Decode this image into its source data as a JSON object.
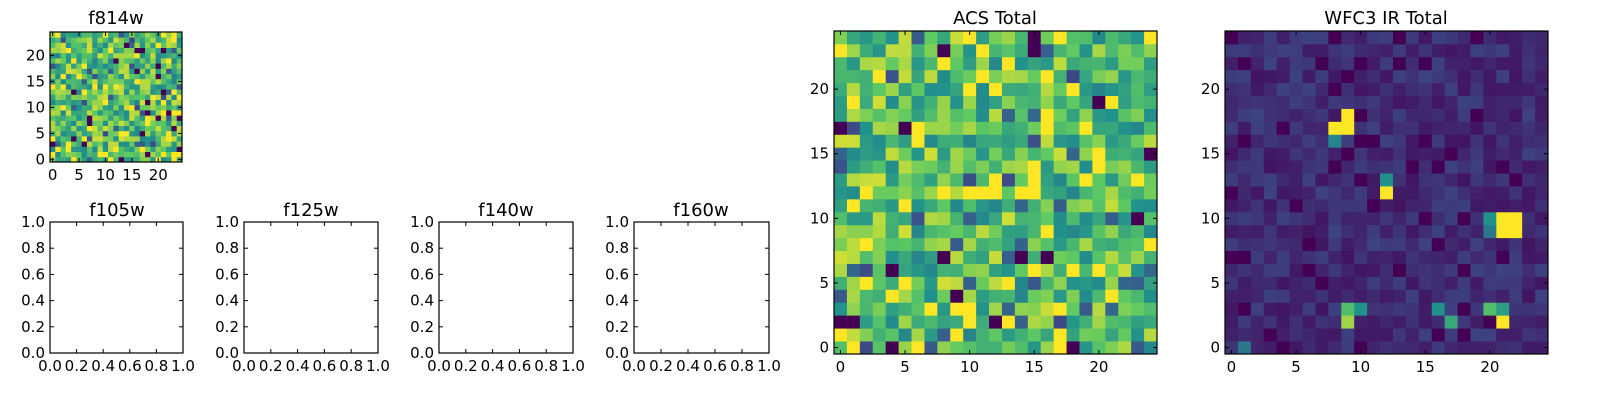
{
  "figure": {
    "title": ""
  },
  "colormap": [
    "#440154",
    "#3b528b",
    "#21918c",
    "#5ec962",
    "#fde725"
  ],
  "chart_data": [
    {
      "id": "f814w",
      "type": "heatmap",
      "title": "f814w",
      "grid": [
        25,
        25
      ],
      "xlim": [
        0,
        24
      ],
      "ylim": [
        0,
        24
      ],
      "xticks": [
        0,
        5,
        10,
        15,
        20
      ],
      "yticks": [
        0,
        5,
        10,
        15,
        20
      ],
      "seed": 17,
      "distribution": "uniform-high",
      "peaks": []
    },
    {
      "id": "f105w",
      "type": "empty",
      "title": "f105w",
      "xlim": [
        0,
        1
      ],
      "ylim": [
        0,
        1
      ],
      "xticks": [
        "0.0",
        "0.2",
        "0.4",
        "0.6",
        "0.8",
        "1.0"
      ],
      "yticks": [
        "0.0",
        "0.2",
        "0.4",
        "0.6",
        "0.8",
        "1.0"
      ]
    },
    {
      "id": "f125w",
      "type": "empty",
      "title": "f125w",
      "xlim": [
        0,
        1
      ],
      "ylim": [
        0,
        1
      ],
      "xticks": [
        "0.0",
        "0.2",
        "0.4",
        "0.6",
        "0.8",
        "1.0"
      ],
      "yticks": [
        "0.0",
        "0.2",
        "0.4",
        "0.6",
        "0.8",
        "1.0"
      ]
    },
    {
      "id": "f140w",
      "type": "empty",
      "title": "f140w",
      "xlim": [
        0,
        1
      ],
      "ylim": [
        0,
        1
      ],
      "xticks": [
        "0.0",
        "0.2",
        "0.4",
        "0.6",
        "0.8",
        "1.0"
      ],
      "yticks": [
        "0.0",
        "0.2",
        "0.4",
        "0.6",
        "0.8",
        "1.0"
      ]
    },
    {
      "id": "f160w",
      "type": "empty",
      "title": "f160w",
      "xlim": [
        0,
        1
      ],
      "ylim": [
        0,
        1
      ],
      "xticks": [
        "0.0",
        "0.2",
        "0.4",
        "0.6",
        "0.8",
        "1.0"
      ],
      "yticks": [
        "0.0",
        "0.2",
        "0.4",
        "0.6",
        "0.8",
        "1.0"
      ]
    },
    {
      "id": "acs",
      "type": "heatmap",
      "title": "ACS Total",
      "grid": [
        25,
        25
      ],
      "xlim": [
        0,
        24
      ],
      "ylim": [
        0,
        24
      ],
      "xticks": [
        0,
        5,
        10,
        15,
        20
      ],
      "yticks": [
        0,
        5,
        10,
        15,
        20
      ],
      "seed": 91,
      "distribution": "uniform-high",
      "peaks": []
    },
    {
      "id": "wfc3",
      "type": "heatmap",
      "title": "WFC3 IR Total",
      "grid": [
        25,
        25
      ],
      "xlim": [
        0,
        24
      ],
      "ylim": [
        0,
        24
      ],
      "xticks": [
        0,
        5,
        10,
        15,
        20
      ],
      "yticks": [
        0,
        5,
        10,
        15,
        20
      ],
      "seed": 5,
      "distribution": "low",
      "peaks": [
        {
          "x": 8,
          "y": 17,
          "v": 1.0
        },
        {
          "x": 9,
          "y": 17,
          "v": 1.0
        },
        {
          "x": 9,
          "y": 18,
          "v": 1.0
        },
        {
          "x": 8,
          "y": 16,
          "v": 0.45
        },
        {
          "x": 12,
          "y": 12,
          "v": 1.0
        },
        {
          "x": 12,
          "y": 13,
          "v": 0.5
        },
        {
          "x": 21,
          "y": 9,
          "v": 1.0
        },
        {
          "x": 22,
          "y": 9,
          "v": 1.0
        },
        {
          "x": 21,
          "y": 10,
          "v": 1.0
        },
        {
          "x": 22,
          "y": 10,
          "v": 1.0
        },
        {
          "x": 20,
          "y": 10,
          "v": 0.5
        },
        {
          "x": 20,
          "y": 9,
          "v": 0.4
        },
        {
          "x": 9,
          "y": 2,
          "v": 0.85
        },
        {
          "x": 9,
          "y": 3,
          "v": 0.7
        },
        {
          "x": 10,
          "y": 3,
          "v": 0.5
        },
        {
          "x": 16,
          "y": 3,
          "v": 0.5
        },
        {
          "x": 17,
          "y": 2,
          "v": 0.6
        },
        {
          "x": 20,
          "y": 3,
          "v": 0.7
        },
        {
          "x": 21,
          "y": 3,
          "v": 0.55
        },
        {
          "x": 21,
          "y": 2,
          "v": 1.0
        },
        {
          "x": 1,
          "y": 0,
          "v": 0.4
        }
      ]
    }
  ]
}
